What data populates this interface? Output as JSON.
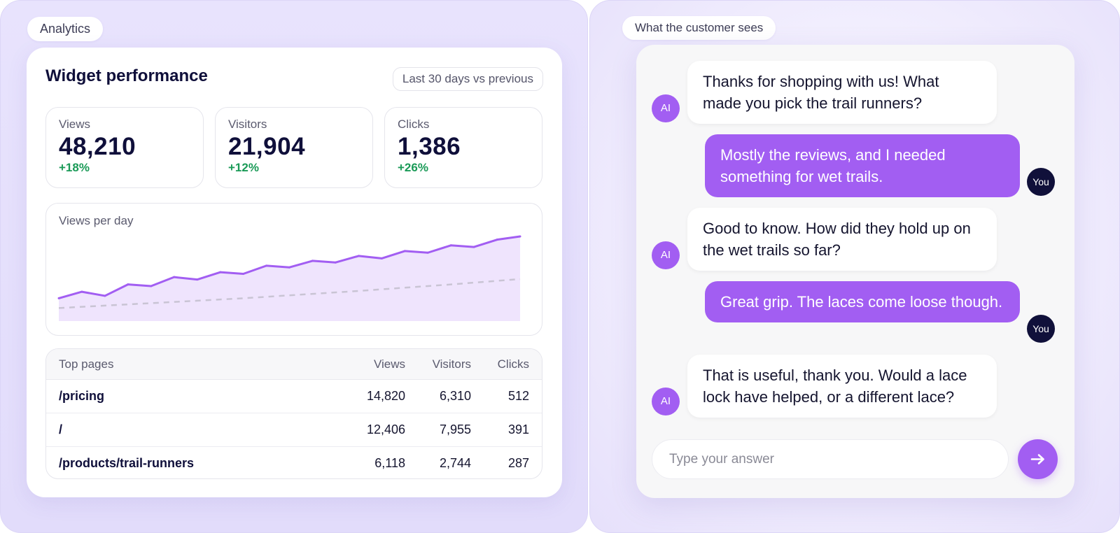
{
  "analytics": {
    "section_label": "Analytics",
    "title": "Widget performance",
    "range_label": "Last 30 days vs previous",
    "stats": [
      {
        "label": "Views",
        "value": "48,210",
        "delta": "+18%"
      },
      {
        "label": "Visitors",
        "value": "21,904",
        "delta": "+12%"
      },
      {
        "label": "Clicks",
        "value": "1,386",
        "delta": "+26%"
      }
    ],
    "chart": {
      "label": "Views per day"
    },
    "table": {
      "headers": {
        "page": "Top pages",
        "views": "Views",
        "visitors": "Visitors",
        "clicks": "Clicks"
      },
      "rows": [
        {
          "page": "/pricing",
          "views": "14,820",
          "visitors": "6,310",
          "clicks": "512"
        },
        {
          "page": "/",
          "views": "12,406",
          "visitors": "7,955",
          "clicks": "391"
        },
        {
          "page": "/products/trail-runners",
          "views": "6,118",
          "visitors": "2,744",
          "clicks": "287"
        }
      ]
    }
  },
  "chart_data": {
    "type": "area",
    "title": "Views per day",
    "x": [
      1,
      2,
      3,
      4,
      5,
      6,
      7,
      8,
      9,
      10,
      11,
      12,
      13,
      14,
      15,
      16,
      17,
      18,
      19,
      20,
      21
    ],
    "series": [
      {
        "values": [
          1180,
          1260,
          1210,
          1350,
          1330,
          1440,
          1410,
          1500,
          1480,
          1580,
          1560,
          1640,
          1620,
          1700,
          1670,
          1760,
          1740,
          1830,
          1810,
          1900,
          1940
        ]
      },
      {
        "values": [
          1060,
          1075,
          1090,
          1105,
          1120,
          1135,
          1150,
          1165,
          1180,
          1198,
          1216,
          1234,
          1252,
          1270,
          1290,
          1310,
          1330,
          1350,
          1372,
          1394,
          1416
        ]
      }
    ],
    "colors": {
      "current": "#a25ef2",
      "previous": "#c9c4d4",
      "fill": "#efe4fd"
    },
    "ylim": [
      900,
      2000
    ],
    "grid": false
  },
  "chat": {
    "section_label": "What the customer sees",
    "messages": [
      {
        "role": "ai",
        "avatar": "AI",
        "text": "Thanks for shopping with us! What made you pick the trail runners?"
      },
      {
        "role": "user",
        "avatar": "You",
        "text": "Mostly the reviews, and I needed something for wet trails."
      },
      {
        "role": "ai",
        "avatar": "AI",
        "text": "Good to know. How did they hold up on the wet trails so far?"
      },
      {
        "role": "user",
        "avatar": "You",
        "text": "Great grip. The laces come loose though."
      },
      {
        "role": "ai",
        "avatar": "AI",
        "text": "That is useful, thank you. Would a lace lock have helped, or a different lace?"
      }
    ],
    "input": {
      "placeholder": "Type your answer",
      "value": ""
    },
    "send_icon": "arrow-right-icon"
  }
}
